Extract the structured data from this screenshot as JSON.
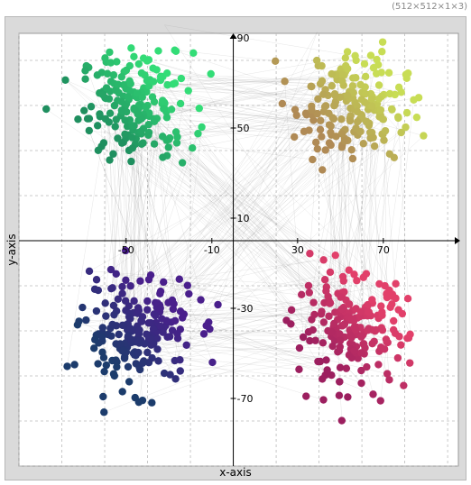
{
  "header": {
    "dims_label": "(512×512×1×3)"
  },
  "chart_data": {
    "type": "scatter",
    "title": "",
    "xlabel": "x-axis",
    "ylabel": "y-axis",
    "xlim": [
      -100,
      105
    ],
    "ylim": [
      -100,
      92
    ],
    "x_tick_labels": [
      -50,
      -10,
      30,
      70
    ],
    "y_tick_labels": [
      90,
      50,
      10,
      -30,
      -70
    ],
    "grid": true,
    "grid_step": 20,
    "clusters": [
      {
        "center": [
          -45,
          60
        ],
        "color_from": "#1f8f5f",
        "color_to": "#33dd77",
        "count": 190
      },
      {
        "center": [
          55,
          60
        ],
        "color_from": "#b08a55",
        "color_to": "#c8dd55",
        "count": 190
      },
      {
        "center": [
          -45,
          -40
        ],
        "color_from": "#1c3c6c",
        "color_to": "#4a1f8c",
        "count": 200
      },
      {
        "center": [
          55,
          -40
        ],
        "color_from": "#9c1f5f",
        "color_to": "#e2406a",
        "count": 200
      }
    ],
    "connections": 420
  }
}
